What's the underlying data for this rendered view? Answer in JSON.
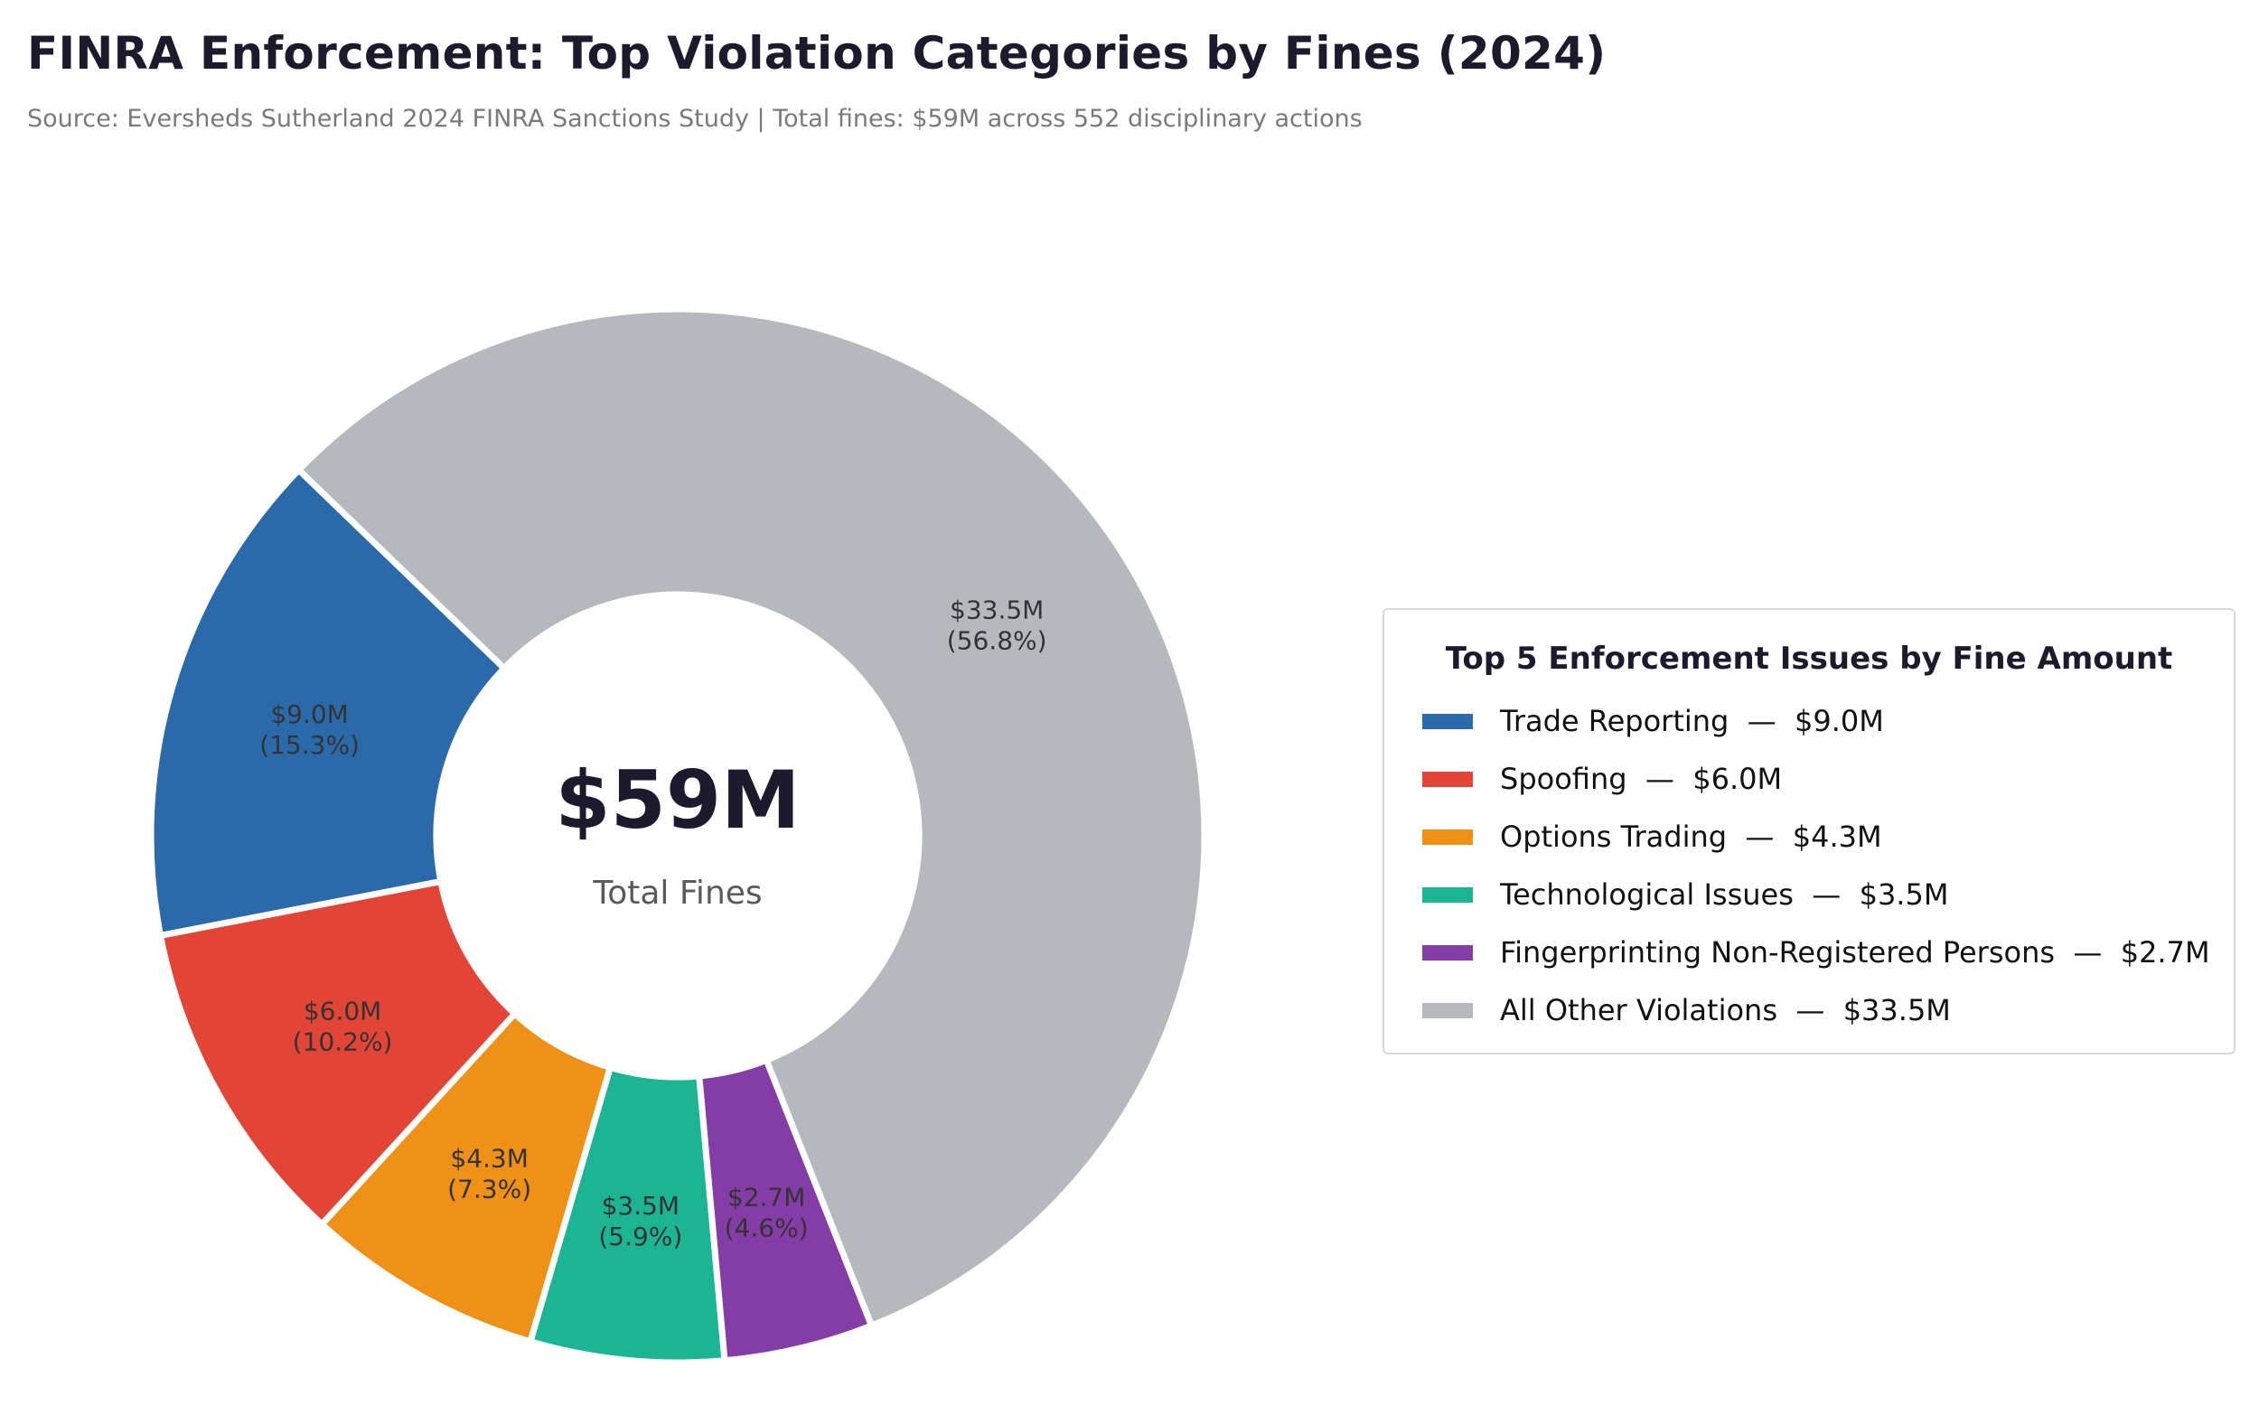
{
  "title": "FINRA Enforcement: Top Violation Categories by Fines (2024)",
  "subtitle": "Source: Eversheds Sutherland 2024 FINRA Sanctions Study  |  Total fines: $59M across 552 disciplinary actions",
  "center": {
    "value": "$59M",
    "label": "Total Fines"
  },
  "legend": {
    "title": "Top 5 Enforcement Issues by Fine Amount",
    "separator": "  —  "
  },
  "chart_data": {
    "type": "pie",
    "donut": true,
    "start_angle_deg": 136,
    "direction": "counterclockwise",
    "categories": [
      "Trade Reporting",
      "Spoofing",
      "Options Trading",
      "Technological Issues",
      "Fingerprinting Non-Registered Persons",
      "All Other Violations"
    ],
    "values": [
      9.0,
      6.0,
      4.3,
      3.5,
      2.7,
      33.5
    ],
    "value_labels": [
      "$9.0M",
      "$6.0M",
      "$4.3M",
      "$3.5M",
      "$2.7M",
      "$33.5M"
    ],
    "percent_labels": [
      "(15.3%)",
      "(10.2%)",
      "(7.3%)",
      "(5.9%)",
      "(4.6%)",
      "(56.8%)"
    ],
    "colors": [
      "#2a6aaa",
      "#e24536",
      "#f09117",
      "#1bb594",
      "#843da6",
      "#b5b9be"
    ],
    "units": "$M"
  }
}
